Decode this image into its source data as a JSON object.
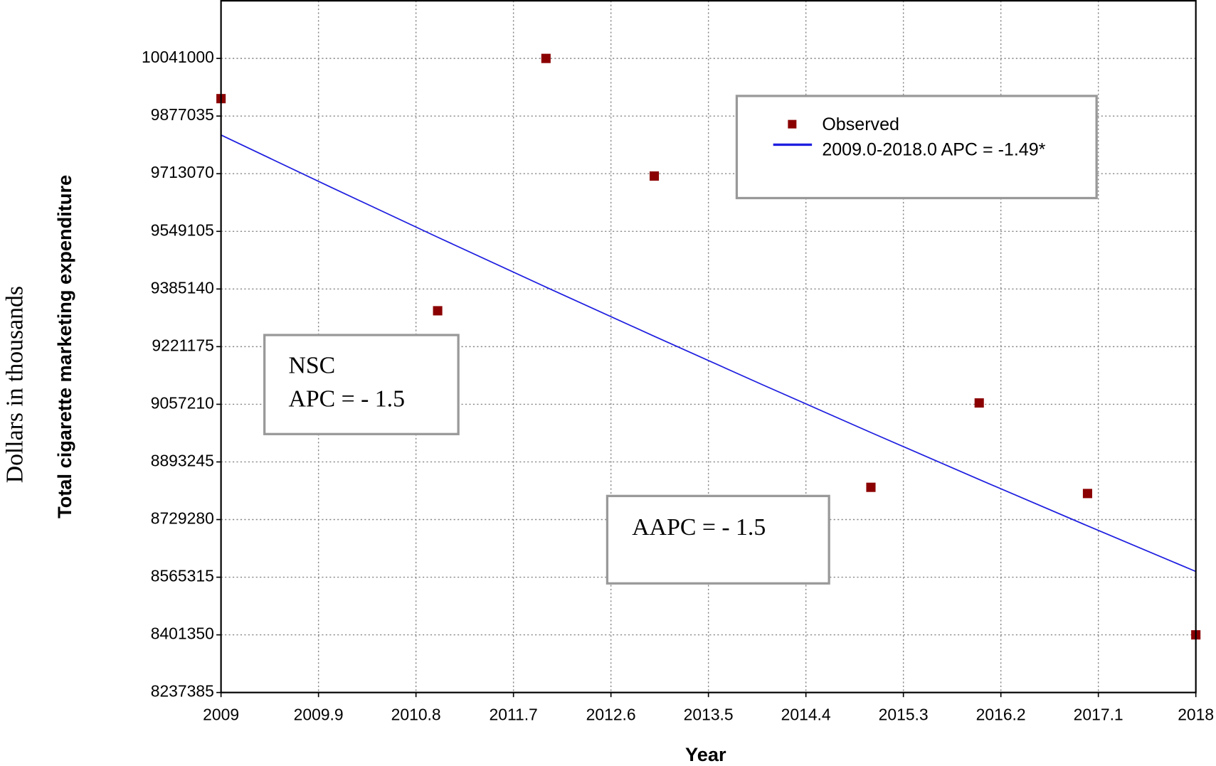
{
  "chart_data": {
    "type": "scatter",
    "xlabel": "Year",
    "ylabel": "Total cigarette  marketing expenditure",
    "outer_ylabel": "Dollars in thousands",
    "series": [
      {
        "name": "Observed",
        "type": "scatter",
        "color": "#8b0000",
        "x": [
          2009,
          2011,
          2012,
          2013,
          2015,
          2016,
          2017,
          2018
        ],
        "values": [
          9926600,
          9323200,
          10041000,
          9706400,
          8821000,
          9061000,
          8803400,
          8401350
        ]
      },
      {
        "name": "2009.0-2018.0 APC  = -1.49*",
        "type": "line",
        "color": "#1f1fe0",
        "x": [
          2009,
          2010,
          2011,
          2012,
          2013,
          2014,
          2015,
          2016,
          2017,
          2018
        ],
        "values": [
          9823100,
          9676700,
          9532500,
          9390500,
          9250600,
          9112700,
          8976900,
          8843200,
          8711400,
          8581600
        ]
      }
    ],
    "annotations": [
      {
        "lines": [
          "NSC",
          "APC = - 1.5"
        ]
      },
      {
        "lines": [
          "AAPC = - 1.5"
        ]
      }
    ],
    "xlim": [
      2009,
      2018
    ],
    "xticks": [
      2009,
      2009.9,
      2010.8,
      2011.7,
      2012.6,
      2013.5,
      2014.4,
      2015.3,
      2016.2,
      2017.1,
      2018
    ],
    "ylim": [
      8237385,
      10204965
    ],
    "yticks": [
      8237385,
      8401350,
      8565315,
      8729280,
      8893245,
      9057210,
      9221175,
      9385140,
      9549105,
      9713070,
      9877035,
      10041000
    ],
    "grid": true,
    "legend": "upper right"
  }
}
